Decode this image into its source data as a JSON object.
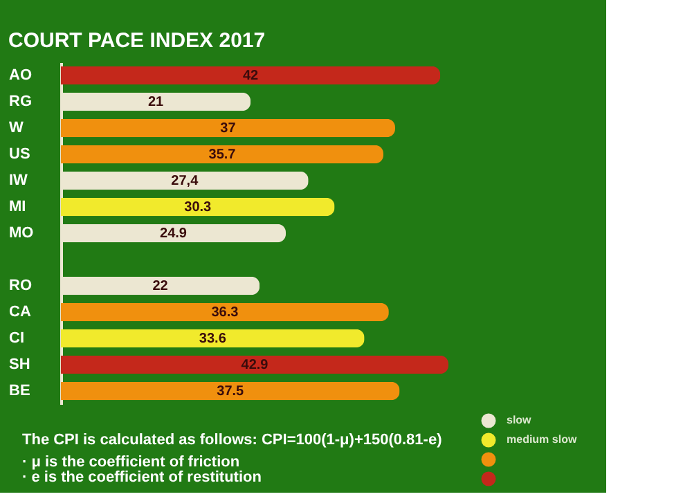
{
  "chart_data": {
    "type": "bar",
    "orientation": "horizontal",
    "title": "COURT PACE INDEX 2017",
    "categories": [
      "AO",
      "RG",
      "W",
      "US",
      "IW",
      "MI",
      "MO",
      null,
      "RO",
      "CA",
      "CI",
      "SH",
      "BE"
    ],
    "series": [
      {
        "name": "slow",
        "color": "#ece7d2",
        "values": [
          null,
          21,
          null,
          null,
          27.4,
          null,
          24.9,
          null,
          22,
          null,
          null,
          null,
          null
        ],
        "value_labels": [
          null,
          "21",
          null,
          null,
          "27,4",
          null,
          "24.9",
          null,
          "22",
          null,
          null,
          null,
          null
        ]
      },
      {
        "name": "medium slow",
        "color": "#f1ea2c",
        "values": [
          null,
          null,
          null,
          null,
          null,
          30.3,
          null,
          null,
          null,
          null,
          33.6,
          null,
          null
        ],
        "value_labels": [
          null,
          null,
          null,
          null,
          null,
          "30.3",
          null,
          null,
          null,
          null,
          "33.6",
          null,
          null
        ]
      },
      {
        "color": "#f0900e",
        "values": [
          null,
          null,
          37,
          35.7,
          null,
          null,
          null,
          null,
          null,
          36.3,
          null,
          null,
          37.5
        ],
        "value_labels": [
          null,
          null,
          "37",
          "35.7",
          null,
          null,
          null,
          null,
          null,
          "36.3",
          null,
          null,
          "37.5"
        ]
      },
      {
        "color": "#c4281b",
        "values": [
          42,
          null,
          null,
          null,
          null,
          null,
          null,
          null,
          null,
          null,
          null,
          42.9,
          null
        ],
        "value_labels": [
          "42",
          null,
          null,
          null,
          null,
          null,
          null,
          null,
          null,
          null,
          null,
          "42.9",
          null
        ]
      }
    ],
    "tick_labels": "y",
    "grid": false,
    "legend": "bottom right",
    "annotations": [
      "The CPI is calculated as follows: CPI=100(1-μ)+150(0.81-e)",
      "· μ is the coefficient of friction",
      "· e is the coefficient of restitution"
    ]
  }
}
